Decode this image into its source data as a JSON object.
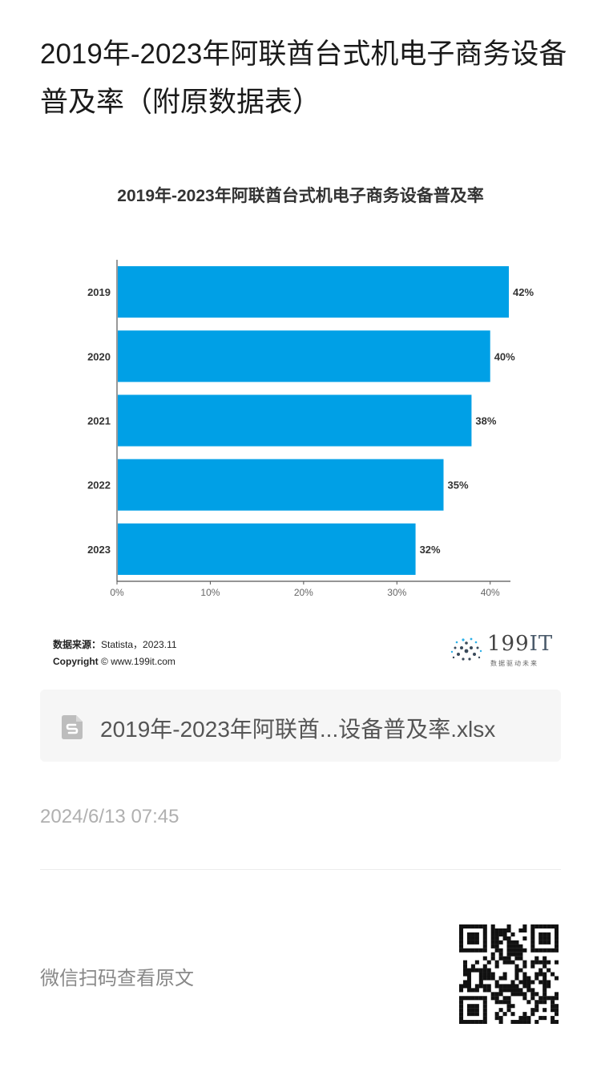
{
  "article": {
    "title": "2019年-2023年阿联酋台式机电子商务设备普及率（附原数据表）",
    "timestamp": "2024/6/13 07:45",
    "scan_prompt": "微信扫码查看原文"
  },
  "chart_data": {
    "type": "bar",
    "orientation": "horizontal",
    "title": "2019年-2023年阿联酋台式机电子商务设备普及率",
    "categories": [
      "2019",
      "2020",
      "2021",
      "2022",
      "2023"
    ],
    "values": [
      42,
      40,
      38,
      35,
      32
    ],
    "value_labels": [
      "42%",
      "40%",
      "38%",
      "35%",
      "32%"
    ],
    "x_ticks": [
      "0%",
      "10%",
      "20%",
      "30%",
      "40%"
    ],
    "xlim": [
      0,
      42
    ],
    "bar_color": "#00a0e6",
    "grid": false,
    "legend": "none"
  },
  "source": {
    "label": "数据来源：",
    "value": "Statista，2023.11",
    "copyright_label": "Copyright",
    "copyright_value": "© www.199it.com"
  },
  "logo": {
    "number": "199",
    "letters": "IT",
    "tagline": "数据驱动未来"
  },
  "attachment": {
    "icon": "spreadsheet-file-icon",
    "name": "2019年-2023年阿联酋...设备普及率.xlsx"
  },
  "colors": {
    "bar": "#00a0e6",
    "file_card_bg": "#f6f6f6",
    "file_icon": "#bdbdbd"
  }
}
